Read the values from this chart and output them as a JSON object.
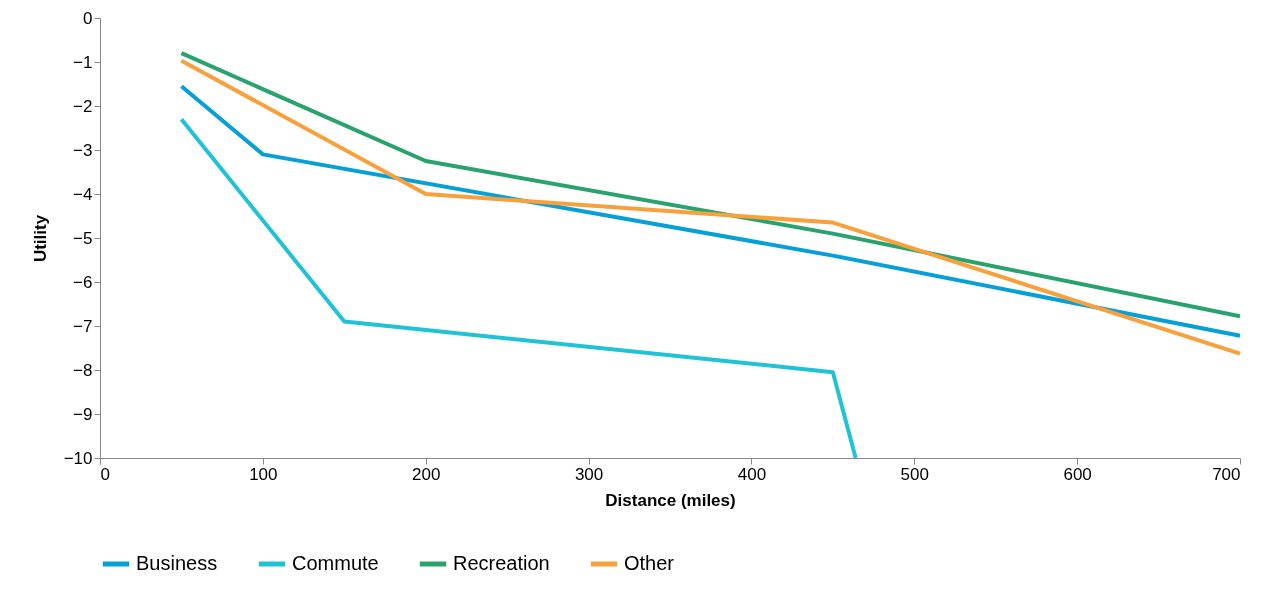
{
  "chart_data": {
    "type": "line",
    "xlabel": "Distance (miles)",
    "ylabel": "Utility",
    "xlim": [
      0,
      700
    ],
    "xticks": [
      0,
      100,
      200,
      300,
      400,
      500,
      600,
      700
    ],
    "ylim": [
      -10,
      0
    ],
    "yticks": [
      -10,
      -9,
      -8,
      -7,
      -6,
      -5,
      -4,
      -3,
      -2,
      -1,
      0
    ],
    "grid": false,
    "legend": "bottom",
    "marker": "none",
    "line_style": "solid",
    "series": [
      {
        "name": "Business",
        "color": "#05a0d6",
        "x": [
          50,
          100,
          450,
          700
        ],
        "values": [
          -1.55,
          -3.1,
          -5.4,
          -7.22
        ]
      },
      {
        "name": "Commute",
        "color": "#20c2d6",
        "x": [
          50,
          150,
          450,
          464
        ],
        "values": [
          -2.3,
          -6.9,
          -8.05,
          -10
        ]
      },
      {
        "name": "Recreation",
        "color": "#28a36d",
        "x": [
          50,
          200,
          450,
          700
        ],
        "values": [
          -0.8,
          -3.25,
          -4.9,
          -6.78
        ]
      },
      {
        "name": "Other",
        "color": "#f8a13c",
        "x": [
          50,
          200,
          450,
          700
        ],
        "values": [
          -0.97,
          -4.0,
          -4.65,
          -7.63
        ]
      }
    ]
  }
}
